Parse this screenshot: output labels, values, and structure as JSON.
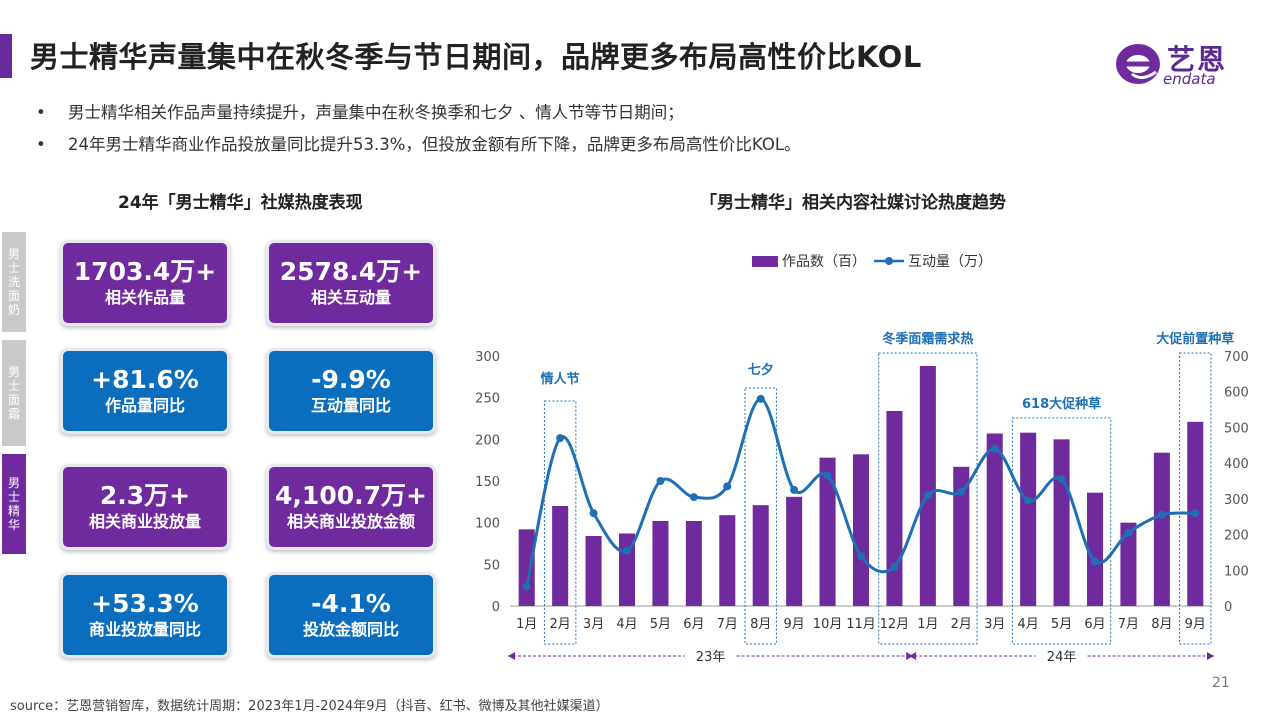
{
  "title": "男士精华声量集中在秋冬季与节日期间，品牌更多布局高性价比KOL",
  "logo": {
    "text": "艺恩",
    "sub": "endata"
  },
  "bullets": [
    "男士精华相关作品声量持续提升，声量集中在秋冬换季和七夕 、情人节等节日期间；",
    "24年男士精华商业作品投放量同比提升53.3%，但投放金额有所下降，品牌更多布局高性价比KOL。"
  ],
  "bullet_symbol": "•",
  "left_title": "24年「男士精华」社媒热度表现",
  "right_title": "「男士精华」相关内容社媒讨论热度趋势",
  "side_tabs": [
    {
      "label": "男士洗面奶",
      "color": "#c9c9c9"
    },
    {
      "label": "男士面霜",
      "color": "#c9c9c9"
    },
    {
      "label": "男士精华",
      "color": "#6f2b9e"
    }
  ],
  "cards": [
    {
      "value": "1703.4万+",
      "label": "相关作品量",
      "color": "purple"
    },
    {
      "value": "2578.4万+",
      "label": "相关互动量",
      "color": "purple"
    },
    {
      "value": "+81.6%",
      "label": "作品量同比",
      "color": "blue"
    },
    {
      "value": "-9.9%",
      "label": "互动量同比",
      "color": "blue"
    },
    {
      "value": "2.3万+",
      "label": "相关商业投放量",
      "color": "purple"
    },
    {
      "value": "4,100.7万+",
      "label": "相关商业投放金额",
      "color": "purple"
    },
    {
      "value": "+53.3%",
      "label": "商业投放量同比",
      "color": "blue"
    },
    {
      "value": "-4.1%",
      "label": "投放金额同比",
      "color": "blue"
    }
  ],
  "colors": {
    "purple": "#6f2b9e",
    "blue": "#0a6dbd",
    "line": "#1f6fb5",
    "annotation": "#1f6fb5"
  },
  "chart_data": {
    "type": "bar",
    "categories": [
      "1月",
      "2月",
      "3月",
      "4月",
      "5月",
      "6月",
      "7月",
      "8月",
      "9月",
      "10月",
      "11月",
      "12月",
      "1月",
      "2月",
      "3月",
      "4月",
      "5月",
      "6月",
      "7月",
      "8月",
      "9月"
    ],
    "series": [
      {
        "name": "作品数（百）",
        "type": "bar",
        "axis": "left",
        "values": [
          92,
          120,
          84,
          87,
          102,
          102,
          109,
          121,
          131,
          178,
          182,
          234,
          288,
          167,
          207,
          208,
          200,
          136,
          100,
          184,
          221
        ]
      },
      {
        "name": "互动量（万）",
        "type": "line",
        "axis": "right",
        "values": [
          55,
          470,
          260,
          155,
          350,
          305,
          335,
          580,
          325,
          365,
          140,
          110,
          310,
          320,
          440,
          295,
          355,
          125,
          205,
          255,
          260
        ]
      }
    ],
    "y_left": {
      "ylim": [
        0,
        300
      ],
      "ticks": [
        "0",
        "50",
        "100",
        "150",
        "200",
        "250",
        "300"
      ]
    },
    "y_right": {
      "ylim": [
        0,
        700
      ],
      "ticks": [
        "0",
        "100",
        "200",
        "300",
        "400",
        "500",
        "600",
        "700"
      ]
    },
    "legend": {
      "position": "top-center"
    },
    "grid": false,
    "year_labels": [
      {
        "label": "23年",
        "from_index": 0,
        "to_index": 11
      },
      {
        "label": "24年",
        "from_index": 12,
        "to_index": 20
      }
    ],
    "annotations": [
      {
        "text": "情人节",
        "from_index": 1,
        "to_index": 1
      },
      {
        "text": "七夕",
        "from_index": 7,
        "to_index": 7
      },
      {
        "text": "冬季面霜需求热",
        "from_index": 11,
        "to_index": 13
      },
      {
        "text": "618大促种草",
        "from_index": 15,
        "to_index": 17
      },
      {
        "text": "大促前置种草",
        "from_index": 20,
        "to_index": 20
      }
    ]
  },
  "source": "source：艺恩营销智库，数据统计周期：2023年1月-2024年9月（抖音、红书、微博及其他社媒渠道）",
  "page_number": "21"
}
